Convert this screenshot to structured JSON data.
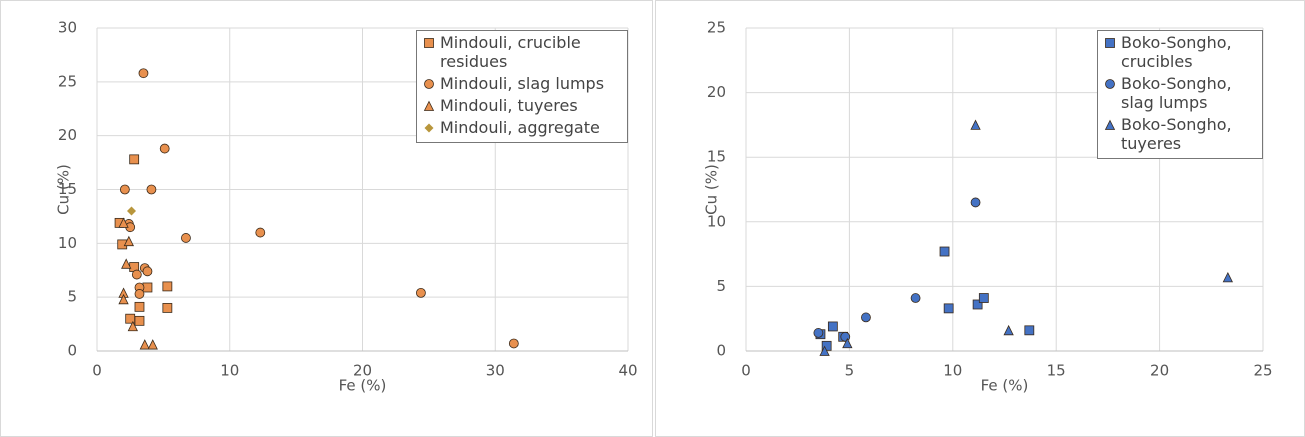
{
  "chart_data": [
    {
      "type": "scatter",
      "xlabel": "Fe (%)",
      "ylabel": "Cu (%)",
      "xlim": [
        0,
        40
      ],
      "xticks": [
        0,
        10,
        20,
        30,
        40
      ],
      "ylim": [
        0,
        30
      ],
      "yticks": [
        0,
        5,
        10,
        15,
        20,
        25,
        30
      ],
      "grid": true,
      "legend": "upper right",
      "series": [
        {
          "name": "Mindouli, crucible residues",
          "color": "#e8904e",
          "marker": "square",
          "x": [
            2.8,
            1.7,
            1.9,
            2.8,
            3.8,
            5.3,
            5.3,
            3.2,
            2.5,
            3.2
          ],
          "y": [
            17.8,
            11.9,
            9.9,
            7.8,
            5.9,
            6.0,
            4.0,
            4.1,
            3.0,
            2.8
          ]
        },
        {
          "name": "Mindouli, slag lumps",
          "color": "#e8904e",
          "marker": "circle",
          "x": [
            3.5,
            5.1,
            2.1,
            4.1,
            2.4,
            2.5,
            6.7,
            12.3,
            3.6,
            3.8,
            3.0,
            3.2,
            3.2,
            24.4,
            31.4
          ],
          "y": [
            25.8,
            18.8,
            15.0,
            15.0,
            11.8,
            11.5,
            10.5,
            11.0,
            7.7,
            7.4,
            7.1,
            5.9,
            5.3,
            5.4,
            0.7
          ]
        },
        {
          "name": "Mindouli, tuyeres",
          "color": "#e8904e",
          "marker": "triangle",
          "x": [
            2.0,
            2.4,
            2.2,
            2.0,
            2.0,
            2.7,
            3.6,
            4.2
          ],
          "y": [
            11.9,
            10.2,
            8.1,
            5.4,
            4.8,
            2.3,
            0.6,
            0.6
          ]
        },
        {
          "name": "Mindouli, aggregate",
          "color": "#b8963c",
          "marker": "diamond",
          "x": [
            2.6
          ],
          "y": [
            13.0
          ]
        }
      ]
    },
    {
      "type": "scatter",
      "xlabel": "Fe (%)",
      "ylabel": "Cu (%)",
      "xlim": [
        0,
        25
      ],
      "xticks": [
        0,
        5,
        10,
        15,
        20,
        25
      ],
      "ylim": [
        0,
        25
      ],
      "yticks": [
        0,
        5,
        10,
        15,
        20,
        25
      ],
      "grid": true,
      "legend": "upper right",
      "series": [
        {
          "name": "Boko-Songho, crucibles",
          "color": "#4472c4",
          "marker": "square",
          "x": [
            3.6,
            3.9,
            4.2,
            4.7,
            9.6,
            9.8,
            11.2,
            11.5,
            13.7
          ],
          "y": [
            1.3,
            0.4,
            1.9,
            1.1,
            7.7,
            3.3,
            3.6,
            4.1,
            1.6
          ]
        },
        {
          "name": "Boko-Songho, slag lumps",
          "color": "#4472c4",
          "marker": "circle",
          "x": [
            3.5,
            5.8,
            8.2,
            11.1,
            4.8
          ],
          "y": [
            1.4,
            2.6,
            4.1,
            11.5,
            1.1
          ]
        },
        {
          "name": "Boko-Songho, tuyeres",
          "color": "#4472c4",
          "marker": "triangle",
          "x": [
            3.8,
            4.9,
            11.1,
            12.7,
            23.3
          ],
          "y": [
            0.0,
            0.6,
            17.5,
            1.6,
            5.7
          ]
        }
      ]
    }
  ]
}
